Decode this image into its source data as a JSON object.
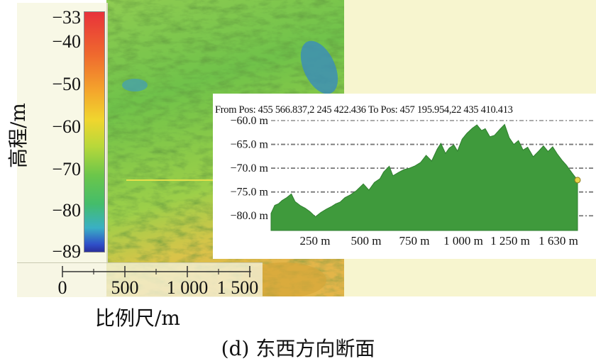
{
  "legend": {
    "axis_label": "高程/m",
    "ticks": [
      "−33",
      "−40",
      "−50",
      "−60",
      "−70",
      "−80",
      "−89"
    ],
    "colors": [
      "#e8323a",
      "#f4a62c",
      "#f0d62e",
      "#6cc64a",
      "#3ab0c4",
      "#2a2f9c"
    ]
  },
  "scale_bar": {
    "labels": [
      "0",
      "500",
      "1 000",
      "1 500"
    ],
    "caption": "比例尺/m"
  },
  "profile": {
    "positions_text": "From Pos: 455 566.837,2 245 422.436 To Pos: 457 195.954,22 435 410.413",
    "fill_color": "#3f9a3c"
  },
  "chart_data": {
    "type": "area",
    "y_ticks": [
      "−60.0 m",
      "−65.0 m",
      "−70.0 m",
      "−75.0 m",
      "−80.0 m"
    ],
    "x_ticks": [
      "250 m",
      "500 m",
      "750 m",
      "1 000 m",
      "1 250 m",
      "1 630 m"
    ],
    "ylim": [
      -82.5,
      -60.0
    ],
    "x": [
      0,
      20,
      40,
      60,
      85,
      110,
      130,
      160,
      185,
      210,
      240,
      270,
      300,
      330,
      350,
      375,
      400,
      430,
      460,
      500,
      530,
      560,
      590,
      610,
      640,
      660,
      690,
      720,
      750,
      780,
      810,
      840,
      870,
      900,
      920,
      945,
      965,
      990,
      1010,
      1035,
      1060,
      1090,
      1115,
      1140,
      1160,
      1185,
      1210,
      1240,
      1265,
      1290,
      1315,
      1340,
      1365,
      1390,
      1420,
      1450,
      1475,
      1500,
      1525,
      1550,
      1575,
      1600,
      1630,
      1660
    ],
    "y": [
      -79.5,
      -77.8,
      -77.5,
      -76.8,
      -76.2,
      -75.4,
      -77.0,
      -77.9,
      -78.4,
      -79.1,
      -80.2,
      -79.3,
      -78.6,
      -78.0,
      -77.5,
      -77.1,
      -76.2,
      -75.6,
      -74.8,
      -73.3,
      -74.6,
      -73.0,
      -72.2,
      -70.8,
      -69.6,
      -71.6,
      -70.9,
      -70.3,
      -70.0,
      -69.5,
      -68.8,
      -67.3,
      -68.5,
      -66.0,
      -64.8,
      -66.9,
      -65.8,
      -65.1,
      -66.4,
      -63.9,
      -62.7,
      -61.6,
      -60.9,
      -62.1,
      -61.7,
      -63.4,
      -63.1,
      -61.8,
      -60.8,
      -63.6,
      -65.0,
      -64.2,
      -66.2,
      -65.6,
      -67.6,
      -66.4,
      -65.3,
      -66.5,
      -65.5,
      -67.0,
      -68.3,
      -69.4,
      -71.0,
      -72.5
    ],
    "xlim": [
      0,
      1660
    ],
    "grid": true
  },
  "caption": "(d) 东西方向断面"
}
